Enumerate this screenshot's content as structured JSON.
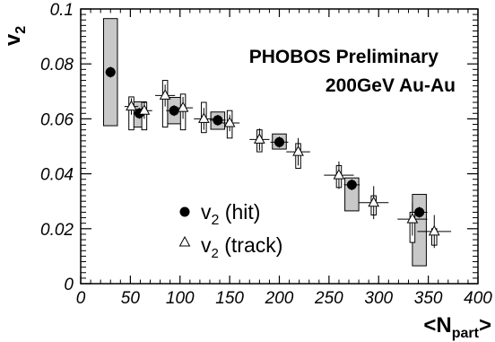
{
  "chart_data": {
    "type": "scatter",
    "xlabel": "<N",
    "xlabel_sub": "part",
    "xlabel_end": ">",
    "ylabel": "v",
    "ylabel_sub": "2",
    "xlim": [
      0,
      400
    ],
    "ylim": [
      0,
      0.1
    ],
    "x_ticks": [
      0,
      50,
      100,
      150,
      200,
      250,
      300,
      350,
      400
    ],
    "x_tick_labels": [
      "0",
      "50",
      "100",
      "150",
      "200",
      "250",
      "300",
      "350",
      "400"
    ],
    "y_ticks": [
      0,
      0.02,
      0.04,
      0.06,
      0.08,
      0.1
    ],
    "y_tick_labels": [
      "0",
      "0.02",
      "0.04",
      "0.06",
      "0.08",
      "0.1"
    ],
    "annotations": [
      "PHOBOS Preliminary",
      "200GeV Au-Au"
    ],
    "legend_placement": "bottom-left",
    "series": [
      {
        "name": "v2 (hit)",
        "legend_main": "v",
        "legend_sub": "2",
        "legend_rest": " (hit)",
        "marker": "filled-circle",
        "box_color": "#c8c8c8",
        "points": [
          {
            "x": 30,
            "y": 0.077,
            "xerr": 5,
            "yerr": 0.002,
            "sys_low": 0.0575,
            "sys_high": 0.0965,
            "sys_halfwidth": 7
          },
          {
            "x": 59,
            "y": 0.062,
            "xerr": 6,
            "yerr": 0.002,
            "sys_low": 0.057,
            "sys_high": 0.0662,
            "sys_halfwidth": 7
          },
          {
            "x": 94,
            "y": 0.063,
            "xerr": 8,
            "yerr": 0.002,
            "sys_low": 0.0582,
            "sys_high": 0.0678,
            "sys_halfwidth": 7
          },
          {
            "x": 138,
            "y": 0.0595,
            "xerr": 8,
            "yerr": 0.002,
            "sys_low": 0.0562,
            "sys_high": 0.0625,
            "sys_halfwidth": 7
          },
          {
            "x": 200,
            "y": 0.0515,
            "xerr": 9,
            "yerr": 0.002,
            "sys_low": 0.049,
            "sys_high": 0.0545,
            "sys_halfwidth": 7
          },
          {
            "x": 273,
            "y": 0.036,
            "xerr": 8,
            "yerr": 0.002,
            "sys_low": 0.0265,
            "sys_high": 0.0385,
            "sys_halfwidth": 7
          },
          {
            "x": 341,
            "y": 0.026,
            "xerr": 8,
            "yerr": 0.002,
            "sys_low": 0.0065,
            "sys_high": 0.0325,
            "sys_halfwidth": 7
          }
        ]
      },
      {
        "name": "v2 (track)",
        "legend_main": "v",
        "legend_sub": "2",
        "legend_rest": " (track)",
        "marker": "open-triangle",
        "box_color": "#ffffff",
        "points": [
          {
            "x": 51,
            "y": 0.0645,
            "xerr": 7,
            "yerr": 0.003,
            "sys_low": 0.056,
            "sys_high": 0.068,
            "sys_halfwidth": 2.5
          },
          {
            "x": 64,
            "y": 0.063,
            "xerr": 8,
            "yerr": 0.003,
            "sys_low": 0.056,
            "sys_high": 0.066,
            "sys_halfwidth": 2.5
          },
          {
            "x": 85,
            "y": 0.0685,
            "xerr": 10,
            "yerr": 0.004,
            "sys_low": 0.057,
            "sys_high": 0.074,
            "sys_halfwidth": 2.5
          },
          {
            "x": 103,
            "y": 0.064,
            "xerr": 10,
            "yerr": 0.004,
            "sys_low": 0.056,
            "sys_high": 0.069,
            "sys_halfwidth": 2.5
          },
          {
            "x": 124,
            "y": 0.06,
            "xerr": 10,
            "yerr": 0.004,
            "sys_low": 0.055,
            "sys_high": 0.066,
            "sys_halfwidth": 2.5
          },
          {
            "x": 150,
            "y": 0.0585,
            "xerr": 10,
            "yerr": 0.003,
            "sys_low": 0.053,
            "sys_high": 0.063,
            "sys_halfwidth": 2.5
          },
          {
            "x": 180,
            "y": 0.0525,
            "xerr": 10,
            "yerr": 0.004,
            "sys_low": 0.048,
            "sys_high": 0.056,
            "sys_halfwidth": 2.5
          },
          {
            "x": 219,
            "y": 0.048,
            "xerr": 12,
            "yerr": 0.005,
            "sys_low": 0.042,
            "sys_high": 0.051,
            "sys_halfwidth": 2.5
          },
          {
            "x": 260,
            "y": 0.0395,
            "xerr": 15,
            "yerr": 0.005,
            "sys_low": 0.035,
            "sys_high": 0.043,
            "sys_halfwidth": 2.5
          },
          {
            "x": 295,
            "y": 0.0295,
            "xerr": 15,
            "yerr": 0.006,
            "sys_low": 0.025,
            "sys_high": 0.032,
            "sys_halfwidth": 2.5
          },
          {
            "x": 334,
            "y": 0.0235,
            "xerr": 15,
            "yerr": 0.006,
            "sys_low": 0.015,
            "sys_high": 0.026,
            "sys_halfwidth": 2.5
          },
          {
            "x": 356,
            "y": 0.019,
            "xerr": 17,
            "yerr": 0.006,
            "sys_low": 0.014,
            "sys_high": 0.02,
            "sys_halfwidth": 2.5
          }
        ]
      }
    ]
  }
}
